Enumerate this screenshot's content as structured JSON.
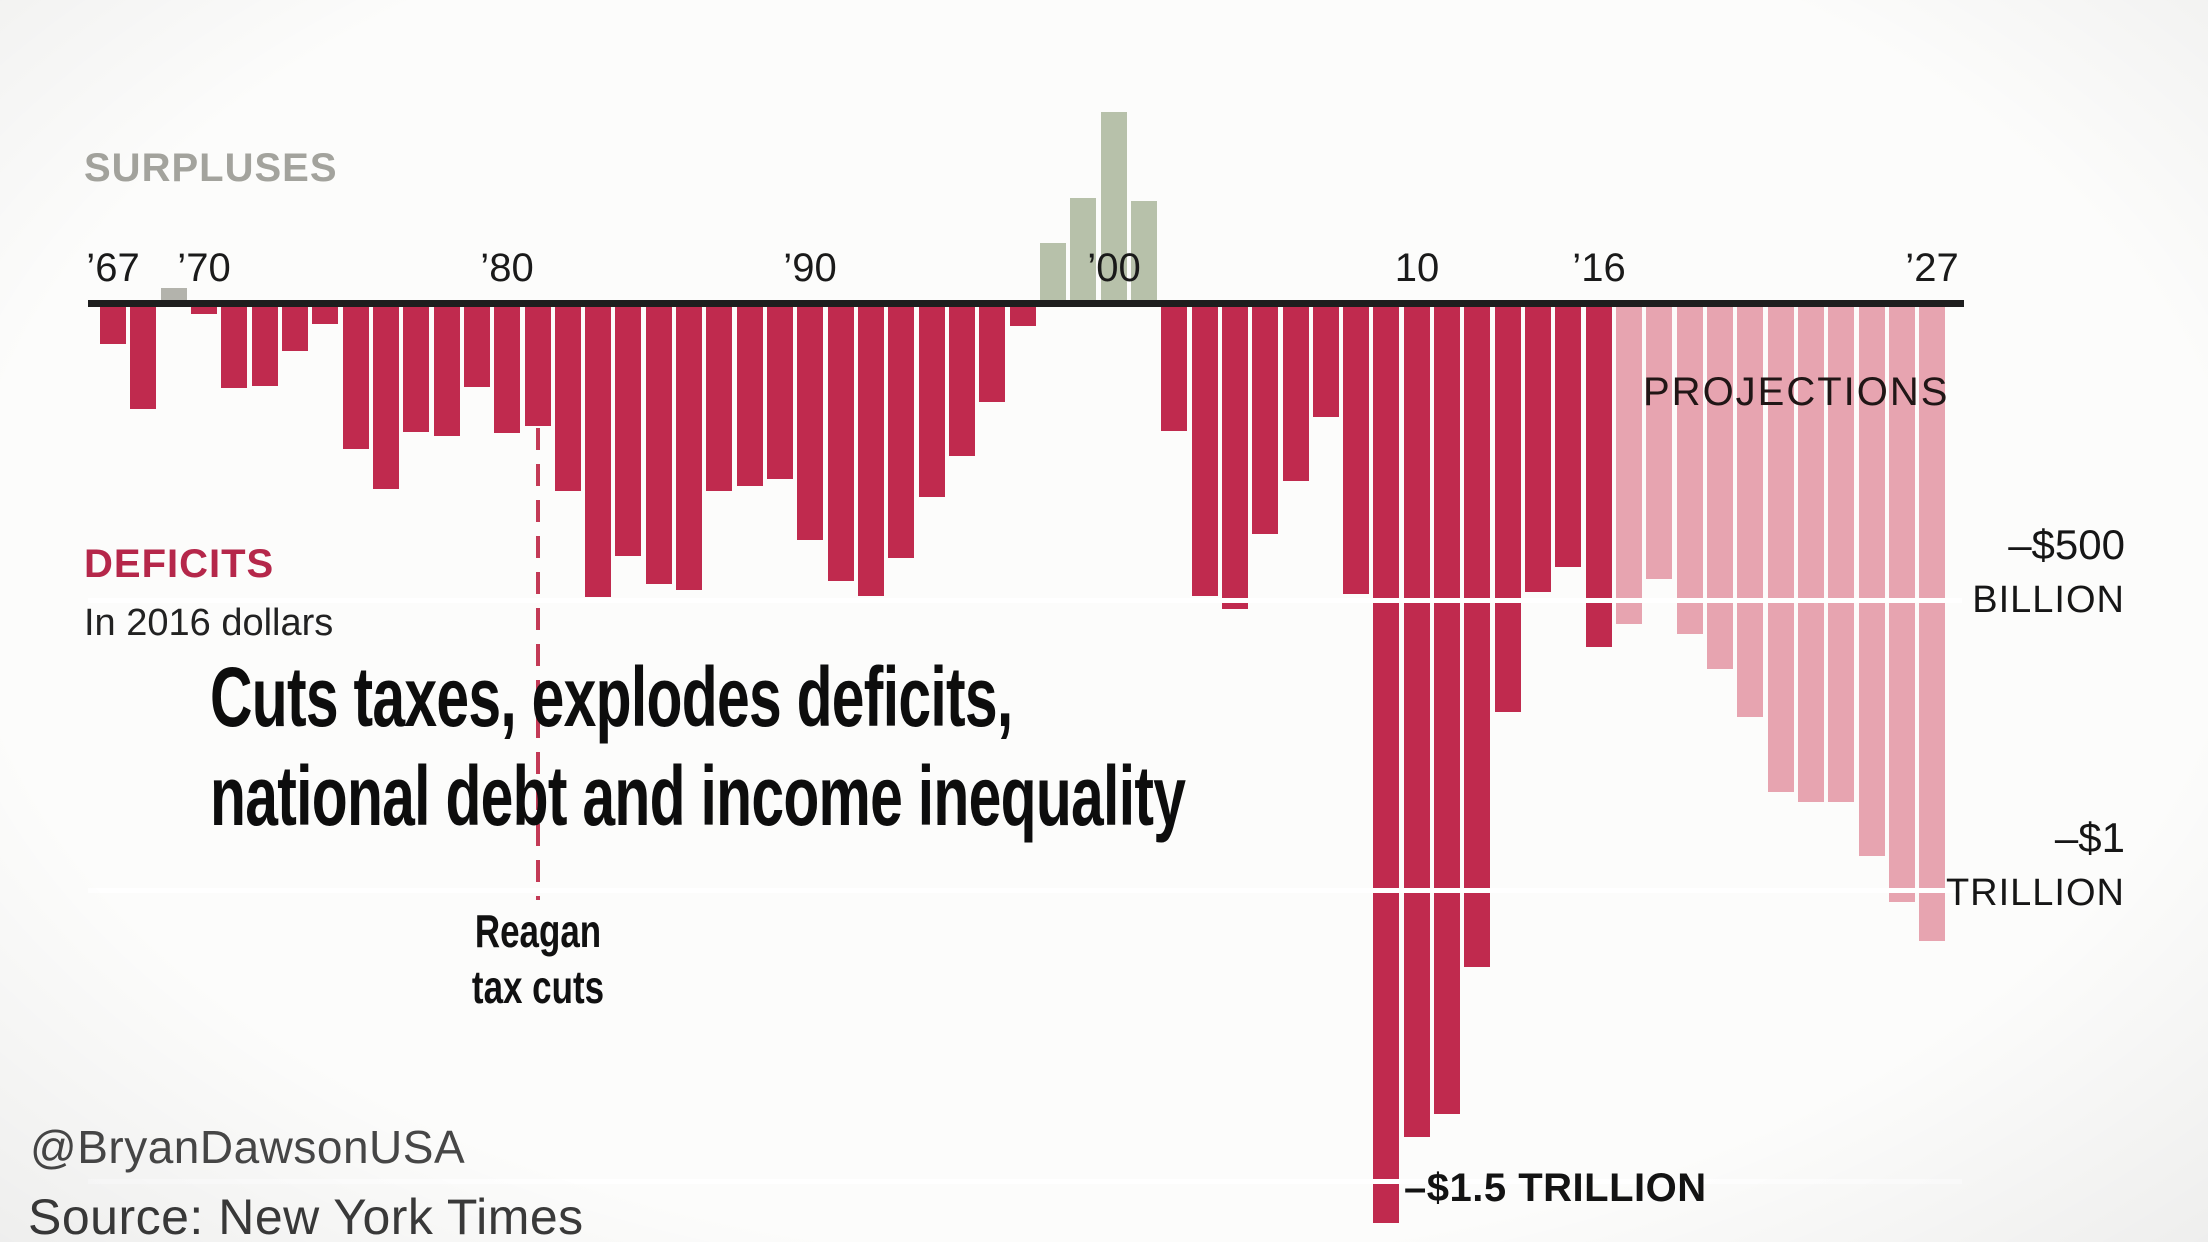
{
  "headline": {
    "line1": "Cuts taxes, explodes deficits,",
    "line2": "national debt and income inequality"
  },
  "labels": {
    "surpluses": "SURPLUSES",
    "deficits": "DEFICITS",
    "units": "In 2016 dollars",
    "projections": "PROJECTIONS",
    "reagan_line1": "Reagan",
    "reagan_line2": "tax cuts",
    "annotation_1_5t": "–$1.5 TRILLION",
    "axis_500b": {
      "line1": "–$500",
      "line2": "BILLION"
    },
    "axis_1t": {
      "line1": "–$1",
      "line2": "TRILLION"
    }
  },
  "credits": {
    "handle": "@BryanDawsonUSA",
    "source": "Source: New York Times"
  },
  "chart_data": {
    "type": "bar",
    "title": "Cuts taxes, explodes deficits, national debt and income inequality",
    "subtitle": "In 2016 dollars",
    "unit": "billions of 2016 US dollars",
    "ylim": [
      -1600,
      350
    ],
    "grid": "horizontal reference lines at -500B, -1T, -1.5T drawn white across bars",
    "legend_position": "inline text labels (SURPLUSES gray-green above axis, DEFICITS red below, PROJECTIONS pink from 2017)",
    "projection_from": 2017,
    "gridlines_billion": [
      -500,
      -1000,
      -1500
    ],
    "x_tick_labels": [
      {
        "label": "’67",
        "year": 1967
      },
      {
        "label": "’70",
        "year": 1970
      },
      {
        "label": "’80",
        "year": 1980
      },
      {
        "label": "’90",
        "year": 1990
      },
      {
        "label": "’00",
        "year": 2000
      },
      {
        "label": "10",
        "year": 2010
      },
      {
        "label": "’16",
        "year": 2016
      },
      {
        "label": "’27",
        "year": 2027
      }
    ],
    "years": [
      1967,
      1968,
      1969,
      1970,
      1971,
      1972,
      1973,
      1974,
      1975,
      1976,
      1977,
      1978,
      1979,
      1980,
      1981,
      1982,
      1983,
      1984,
      1985,
      1986,
      1987,
      1988,
      1989,
      1990,
      1991,
      1992,
      1993,
      1994,
      1995,
      1996,
      1997,
      1998,
      1999,
      2000,
      2001,
      2002,
      2003,
      2004,
      2005,
      2006,
      2007,
      2008,
      2009,
      2010,
      2011,
      2012,
      2013,
      2014,
      2015,
      2016,
      2017,
      2018,
      2019,
      2020,
      2021,
      2022,
      2023,
      2024,
      2025,
      2026,
      2027
    ],
    "values": [
      -63,
      -175,
      22,
      -12,
      -140,
      -136,
      -76,
      -30,
      -245,
      -313,
      -215,
      -222,
      -138,
      -216,
      -205,
      -317,
      -498,
      -429,
      -477,
      -486,
      -317,
      -307,
      -296,
      -400,
      -471,
      -497,
      -432,
      -327,
      -257,
      -164,
      -33,
      100,
      177,
      325,
      172,
      -213,
      -497,
      -520,
      -391,
      -300,
      -189,
      -494,
      -1575,
      -1427,
      -1389,
      -1136,
      -696,
      -490,
      -448,
      -585,
      -546,
      -468,
      -563,
      -623,
      -706,
      -835,
      -851,
      -852,
      -945,
      -1024,
      -1091
    ],
    "annotations": [
      {
        "text": "Reagan tax cuts",
        "year": 1981,
        "style": "dashed red vertical line"
      },
      {
        "text": "–$1.5 TRILLION",
        "year": 2009,
        "style": "bold label beside deepest bar"
      }
    ],
    "colors": {
      "deficit": "#c02a4e",
      "surplus": "#b7c1aa",
      "surplus_early": "#b3b3ac",
      "projection": "#e7a4b0",
      "axis": "#1e1e1e"
    }
  }
}
